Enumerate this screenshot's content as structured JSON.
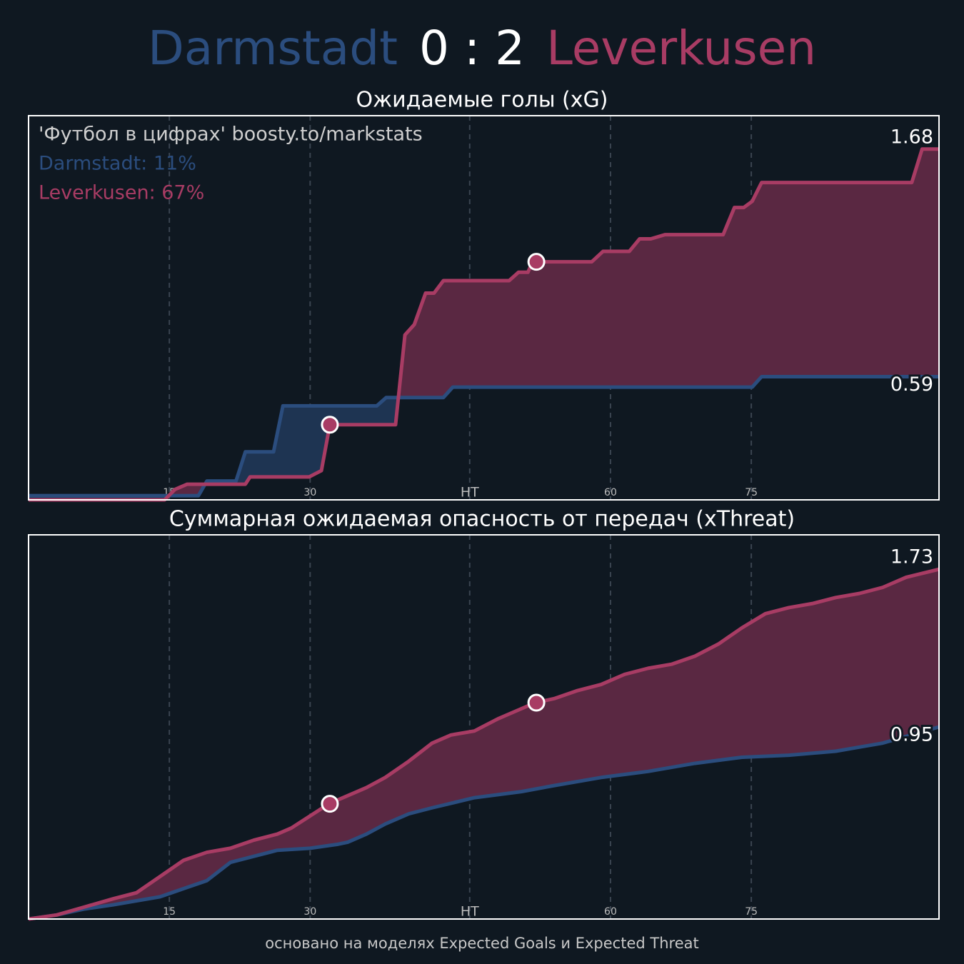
{
  "header": {
    "home": "Darmstadt",
    "score": "0 : 2",
    "away": "Leverkusen"
  },
  "footer": "основано на моделях Expected Goals и Expected Threat",
  "chart_data": [
    {
      "type": "line",
      "title": "Ожидаемые голы (xG)",
      "annotations": [
        "'Футбол в цифрах' boosty.to/markstats",
        "Darmstadt: 11%",
        "Leverkusen: 67%"
      ],
      "xlim": [
        0,
        97
      ],
      "xticks": [
        15,
        30,
        {
          "value": 47,
          "label": "HT"
        },
        {
          "value": 62,
          "label": "60"
        },
        {
          "value": 77,
          "label": "75"
        }
      ],
      "ylim": [
        0,
        1.84
      ],
      "grid": true,
      "series": [
        {
          "name": "Darmstadt",
          "color": "#2b4d7e",
          "fill": "#1e3452",
          "x": [
            0,
            18.1,
            19,
            22.1,
            23.1,
            26.1,
            27.1,
            37.1,
            38.1,
            44.2,
            45.2,
            77.1,
            78.1,
            97
          ],
          "values": [
            0.02,
            0.02,
            0.09,
            0.09,
            0.23,
            0.23,
            0.45,
            0.45,
            0.49,
            0.49,
            0.54,
            0.54,
            0.59,
            0.59
          ]
        },
        {
          "name": "Leverkusen",
          "color": "#a83c64",
          "fill": "#5a2842",
          "x": [
            0,
            14.5,
            15.6,
            16.9,
            23.1,
            23.6,
            29.9,
            31.2,
            32.1,
            39.1,
            40.1,
            41.1,
            42.3,
            43.2,
            44.2,
            51.2,
            52.2,
            53.2,
            53.7,
            60,
            61.2,
            64,
            65.1,
            66.3,
            67.8,
            74,
            75.2,
            76.2,
            77.1,
            78.1,
            94.1,
            95.2,
            97
          ],
          "values": [
            0,
            0,
            0.05,
            0.075,
            0.075,
            0.11,
            0.11,
            0.14,
            0.36,
            0.36,
            0.79,
            0.84,
            0.99,
            0.99,
            1.05,
            1.05,
            1.09,
            1.09,
            1.14,
            1.14,
            1.19,
            1.19,
            1.25,
            1.25,
            1.27,
            1.27,
            1.4,
            1.4,
            1.43,
            1.52,
            1.52,
            1.68,
            1.68
          ]
        }
      ],
      "goals": {
        "x": [
          32.1,
          54.1
        ],
        "y": [
          0.36,
          1.14
        ],
        "color": "#a83c64"
      }
    },
    {
      "type": "line",
      "title": "Суммарная ожидаемая опасность от передач (xThreat)",
      "xlim": [
        0,
        97
      ],
      "xticks": [
        15,
        30,
        {
          "value": 47,
          "label": "HT"
        },
        {
          "value": 62,
          "label": "60"
        },
        {
          "value": 77,
          "label": "75"
        }
      ],
      "ylim": [
        0,
        1.9
      ],
      "grid": true,
      "series": [
        {
          "name": "Darmstadt",
          "color": "#2b4d7e",
          "fill": "#1e3452",
          "x": [
            0,
            3,
            6,
            9,
            11.5,
            14,
            16.5,
            19,
            21.5,
            24,
            26.5,
            30,
            33,
            34,
            36,
            38,
            40.5,
            43,
            47.5,
            52.5,
            56,
            61,
            66,
            71,
            76,
            81,
            86,
            88.5,
            91,
            94,
            97
          ],
          "values": [
            0,
            0.02,
            0.05,
            0.07,
            0.09,
            0.11,
            0.15,
            0.19,
            0.28,
            0.31,
            0.34,
            0.35,
            0.37,
            0.38,
            0.42,
            0.47,
            0.52,
            0.55,
            0.6,
            0.63,
            0.66,
            0.7,
            0.73,
            0.77,
            0.8,
            0.81,
            0.83,
            0.85,
            0.87,
            0.91,
            0.95
          ]
        },
        {
          "name": "Leverkusen",
          "color": "#a83c64",
          "fill": "#5a2842",
          "x": [
            0,
            3,
            6,
            9,
            11.5,
            14,
            16.5,
            19,
            21.5,
            24,
            26.5,
            28,
            30,
            32,
            34.5,
            36,
            38,
            40.5,
            43,
            45,
            47.5,
            50,
            52.5,
            54,
            56,
            58.5,
            61,
            63.5,
            66,
            68.5,
            71,
            73.5,
            76,
            78.5,
            81,
            83.5,
            86,
            88.5,
            91,
            93.5,
            97
          ],
          "values": [
            0,
            0.02,
            0.06,
            0.1,
            0.13,
            0.21,
            0.29,
            0.33,
            0.35,
            0.39,
            0.42,
            0.45,
            0.51,
            0.57,
            0.62,
            0.65,
            0.7,
            0.78,
            0.87,
            0.91,
            0.93,
            0.99,
            1.04,
            1.07,
            1.09,
            1.13,
            1.16,
            1.21,
            1.24,
            1.26,
            1.3,
            1.36,
            1.44,
            1.51,
            1.54,
            1.56,
            1.59,
            1.61,
            1.64,
            1.69,
            1.73
          ]
        }
      ],
      "goals": {
        "x": [
          32.1,
          54.1
        ],
        "y": [
          0.57,
          1.07
        ],
        "color": "#a83c64"
      }
    }
  ]
}
